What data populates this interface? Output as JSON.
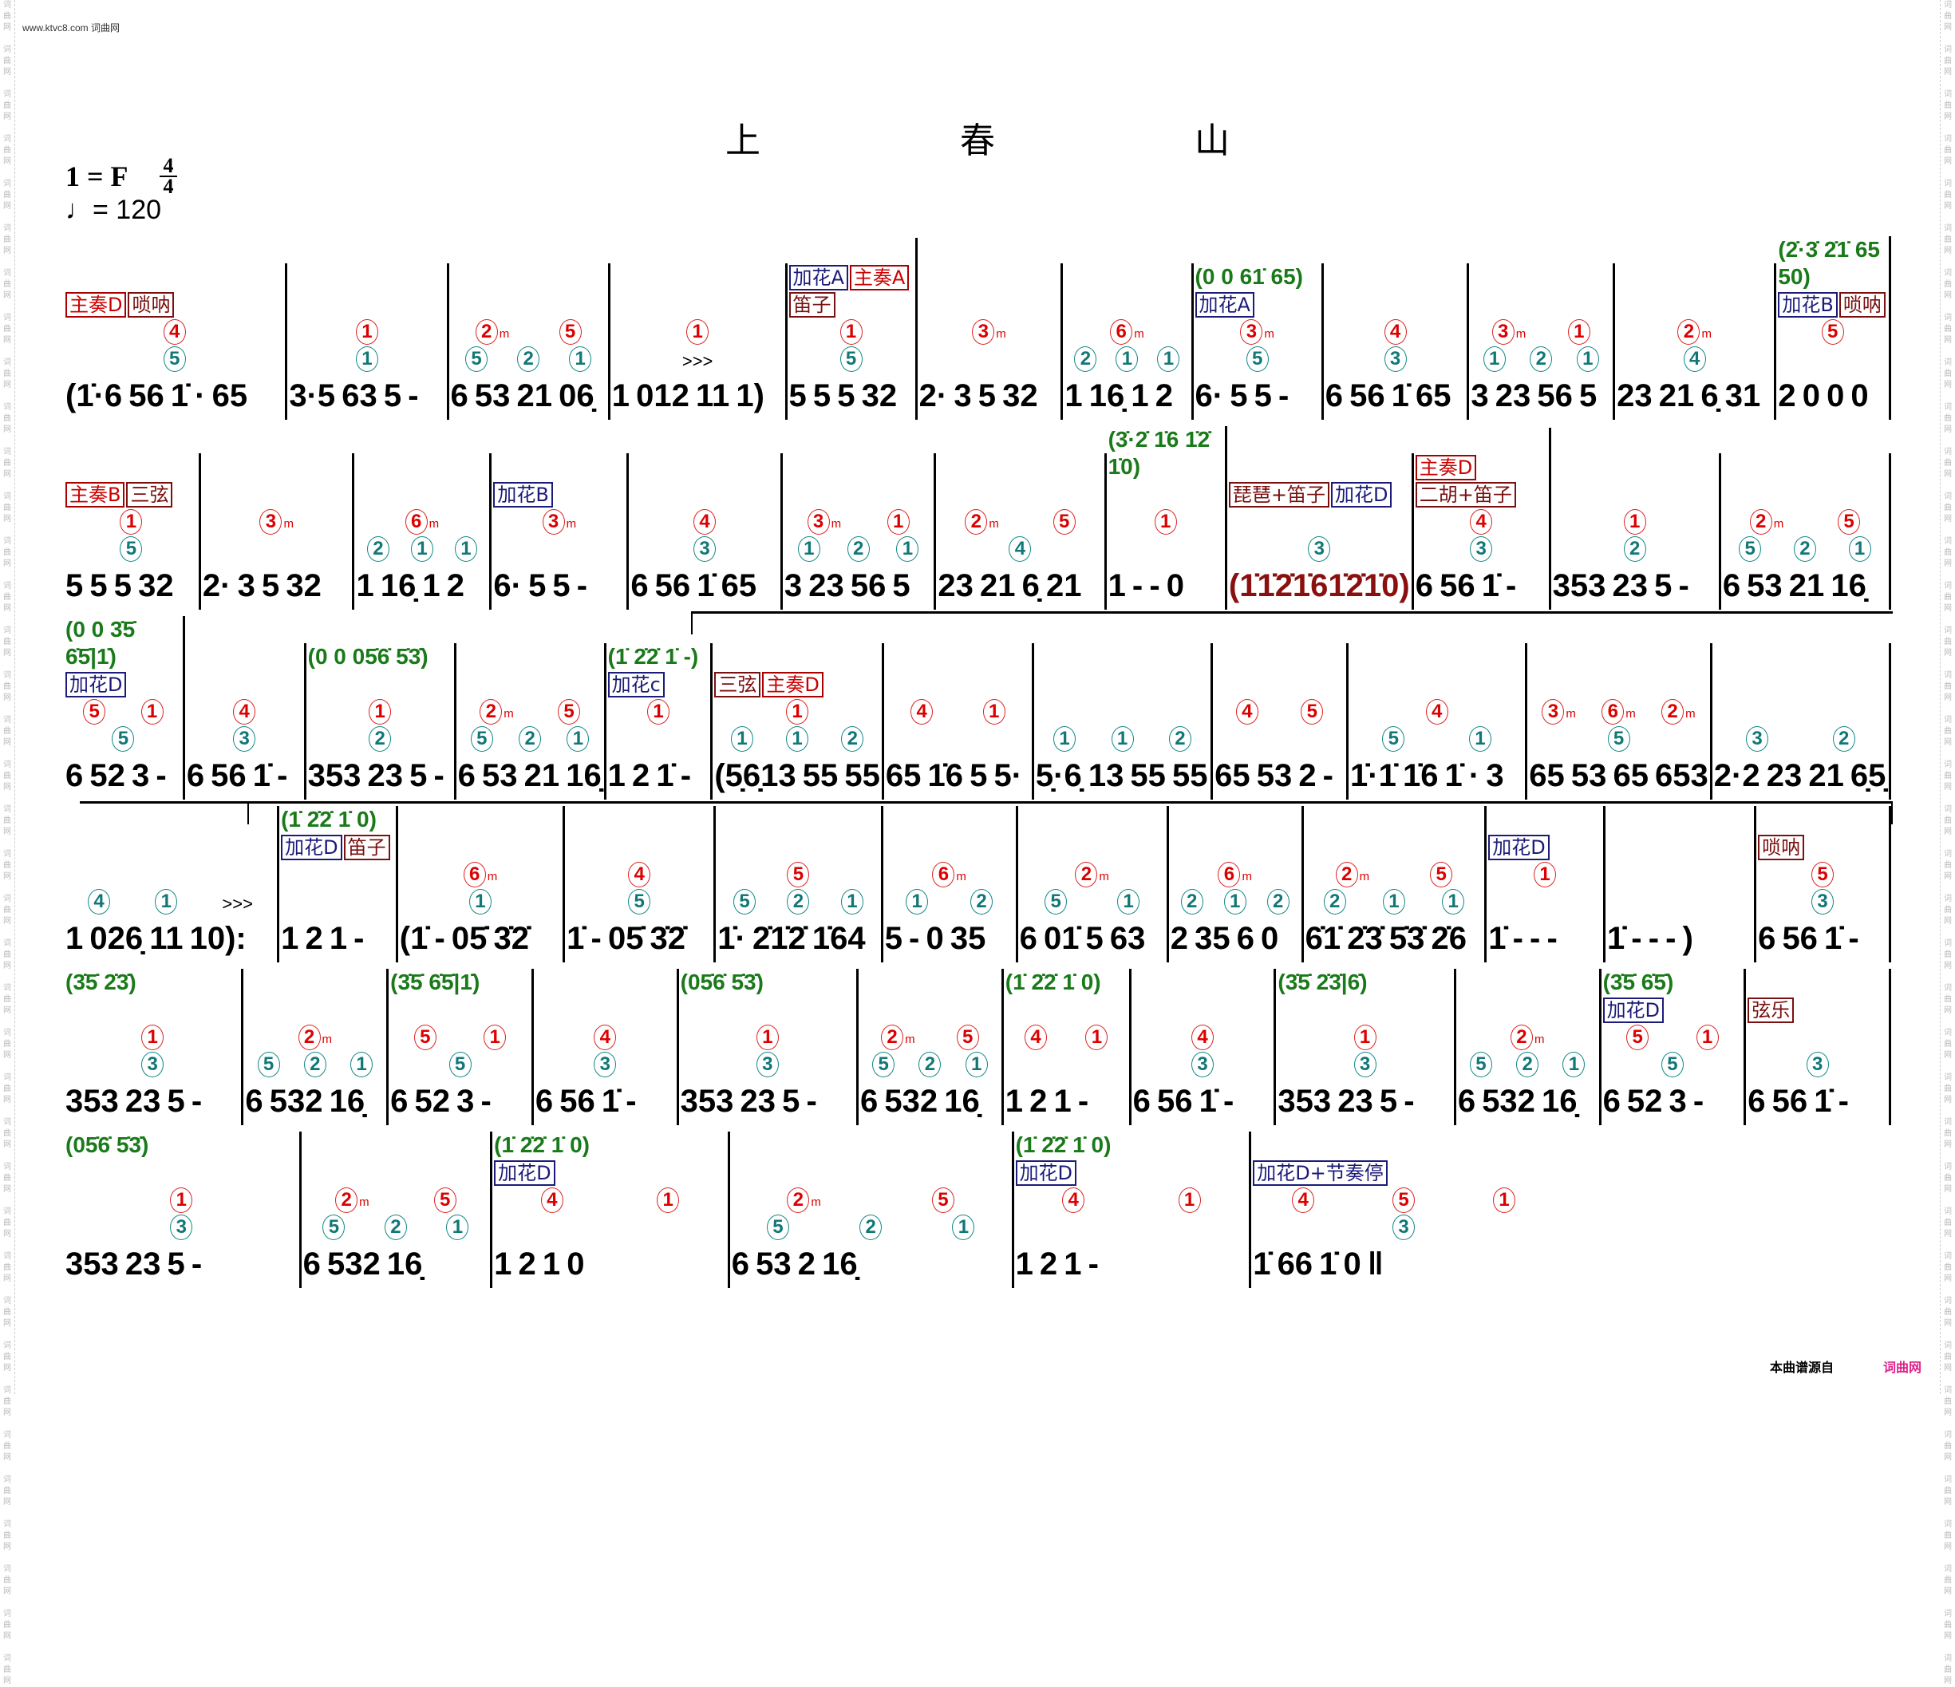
{
  "site": "www.ktvc8.com 词曲网",
  "margin_watermark": "词曲网",
  "title": [
    "上",
    "春",
    "山"
  ],
  "key": "1 = F",
  "time_signature": {
    "top": "4",
    "bottom": "4"
  },
  "tempo": "♩= 120",
  "footer": {
    "source_label": "本曲谱源自",
    "site_name": "词曲网"
  },
  "colors": {
    "string_finger": "#d00000",
    "left_finger": "#117777",
    "ornament": "#1a7a1a",
    "section_box": "#c00000",
    "flower_box": "#1b1b7a"
  },
  "lines": [
    {
      "measures": [
        {
          "notes": "(1̇·6 56 1̇ · 65",
          "red": [
            "4"
          ],
          "teal": [
            "5"
          ],
          "boxes": [
            [
              "主奏D",
              "red"
            ],
            [
              "唢呐",
              "brown"
            ]
          ]
        },
        {
          "notes": "3·5 63 5 -",
          "red": [
            "1"
          ],
          "teal": [
            "1"
          ]
        },
        {
          "notes": "6 53 21 06̣",
          "red": [
            "2m",
            "5"
          ],
          "teal": [
            "5",
            "2",
            "1"
          ]
        },
        {
          "notes": "1 012 11 1)",
          "red": [
            "1"
          ],
          "accent": ">>>"
        },
        {
          "notes": "5 5 5 32",
          "red": [
            "1"
          ],
          "teal": [
            "5"
          ],
          "boxes": [
            [
              "加花A",
              "blue"
            ],
            [
              "主奏A",
              "red"
            ],
            [
              "笛子",
              "brown"
            ]
          ]
        },
        {
          "notes": "2· 3 5 32",
          "red": [
            "3m"
          ]
        },
        {
          "notes": "1 16̣ 1 2",
          "red": [
            "6m"
          ],
          "teal": [
            "2",
            "1",
            "1"
          ]
        },
        {
          "notes": "6· 5 5 -",
          "red": [
            "3m"
          ],
          "teal": [
            "5"
          ],
          "green": "(0 0 61̇ 65)",
          "boxes": [
            [
              "加花A",
              "blue"
            ]
          ]
        },
        {
          "notes": "6 56 1̇ 65",
          "red": [
            "4"
          ],
          "teal": [
            "3"
          ]
        },
        {
          "notes": "3 23 56 5",
          "red": [
            "3m",
            "1"
          ],
          "teal": [
            "1",
            "2",
            "1"
          ]
        },
        {
          "notes": "23 21 6̣ 31",
          "red": [
            "2m"
          ],
          "teal": [
            "4"
          ]
        },
        {
          "notes": "2 0 0 0",
          "red": [
            "5"
          ],
          "green": "(2̇·3̇ 2̇1̇ 65 50)",
          "boxes": [
            [
              "加花B",
              "blue"
            ],
            [
              "唢呐",
              "brown"
            ]
          ]
        }
      ]
    },
    {
      "measures": [
        {
          "notes": "5 5 5 32",
          "red": [
            "1"
          ],
          "teal": [
            "5"
          ],
          "boxes": [
            [
              "主奏B",
              "red"
            ],
            [
              "三弦",
              "brown"
            ]
          ]
        },
        {
          "notes": "2· 3 5 32",
          "red": [
            "3m"
          ]
        },
        {
          "notes": "1 16̣ 1 2",
          "red": [
            "6m"
          ],
          "teal": [
            "2",
            "1",
            "1"
          ]
        },
        {
          "notes": "6· 5 5 -",
          "red": [
            "3m"
          ],
          "boxes": [
            [
              "加花B",
              "blue"
            ]
          ]
        },
        {
          "notes": "6 56 1̇ 65",
          "red": [
            "4"
          ],
          "teal": [
            "3"
          ]
        },
        {
          "notes": "3 23 56 5",
          "red": [
            "3m",
            "1"
          ],
          "teal": [
            "1",
            "2",
            "1"
          ]
        },
        {
          "notes": "23 21 6̣ 21",
          "red": [
            "2m",
            "5"
          ],
          "teal": [
            "4"
          ]
        },
        {
          "notes": "1 - - 0",
          "red": [
            "1"
          ],
          "green": "(3̇·2̇ 1̇6 1̇2̇ 1̇0)"
        },
        {
          "notes": "(1̇1̇2̇1̇61̇2̇1̇0)",
          "dark": true,
          "teal": [
            "3"
          ],
          "boxes": [
            [
              "琵琶+笛子",
              "brown"
            ],
            [
              "加花D",
              "blue"
            ]
          ]
        },
        {
          "notes": "6 56 1̇ -",
          "red": [
            "4"
          ],
          "teal": [
            "3"
          ],
          "boxes": [
            [
              "主奏D",
              "red"
            ],
            [
              "二胡+笛子",
              "brown"
            ]
          ]
        },
        {
          "notes": "353 23 5 -",
          "red": [
            "1"
          ],
          "teal": [
            "2"
          ]
        },
        {
          "notes": "6 53 21 16̣",
          "red": [
            "2m",
            "5"
          ],
          "teal": [
            "5",
            "2",
            "1"
          ]
        }
      ]
    },
    {
      "measures": [
        {
          "notes": "6 52 3 -",
          "red": [
            "5",
            "1"
          ],
          "teal": [
            "5"
          ],
          "green": "(0 0 3̇5̇ 6̇5̇|1̇)",
          "boxes": [
            [
              "加花D",
              "blue"
            ]
          ]
        },
        {
          "notes": "6 56 1̇ -",
          "red": [
            "4"
          ],
          "teal": [
            "3"
          ]
        },
        {
          "notes": "353 23 5 -",
          "red": [
            "1"
          ],
          "teal": [
            "2"
          ],
          "green": "(0 0 05̇6̇ 5̇3̇)"
        },
        {
          "notes": "6 53 21 16̣",
          "red": [
            "2m",
            "5"
          ],
          "teal": [
            "5",
            "2",
            "1"
          ]
        },
        {
          "notes": "1 2 1̇ -",
          "red": [
            "1"
          ],
          "green": "(1̇ 2̇2̇ 1̇ -)",
          "boxes": [
            [
              "加花c",
              "blue"
            ]
          ]
        },
        {
          "notes": "(5̣6̣13 55 55",
          "red": [
            "1"
          ],
          "teal": [
            "1",
            "1",
            "2"
          ],
          "boxes": [
            [
              "三弦",
              "brown"
            ],
            [
              "主奏D",
              "red"
            ]
          ]
        },
        {
          "notes": "65 1̇6 5 5·",
          "red": [
            "4",
            "1"
          ]
        },
        {
          "notes": "5̣·6̣ 13 55 55",
          "teal": [
            "1",
            "1",
            "2"
          ]
        },
        {
          "notes": "65 53 2 -",
          "red": [
            "4",
            "5"
          ]
        },
        {
          "notes": "1̇·1̇ 1̇6 1̇ · 3",
          "red": [
            "4"
          ],
          "teal": [
            "5",
            "1"
          ]
        },
        {
          "notes": "65 53 65 653",
          "red": [
            "3m",
            "6m",
            "2m"
          ],
          "teal": [
            "5"
          ]
        },
        {
          "notes": "2·2 23 21 6̣5̣",
          "teal": [
            "3",
            "2"
          ]
        }
      ]
    },
    {
      "measures": [
        {
          "notes": "1 026̣ 11 10):",
          "teal": [
            "4",
            "1"
          ],
          "accent": ">>>"
        },
        {
          "notes": "1 2 1 -",
          "green": "(1̇ 2̇2̇ 1̇ 0)",
          "boxes": [
            [
              "加花D",
              "blue"
            ],
            [
              "笛子",
              "brown"
            ]
          ]
        },
        {
          "notes": "(1̇ - 05̇ 3̇2̇",
          "red": [
            "6m"
          ],
          "teal": [
            "1"
          ]
        },
        {
          "notes": "1̇ - 05̇ 3̇2̇",
          "red": [
            "4"
          ],
          "teal": [
            "5"
          ]
        },
        {
          "notes": "1̇· 2̇1̇2̇ 1̇64",
          "red": [
            "5"
          ],
          "teal": [
            "5",
            "2",
            "1"
          ]
        },
        {
          "notes": "5 - 0 35",
          "red": [
            "6m"
          ],
          "teal": [
            "1",
            "2"
          ]
        },
        {
          "notes": "6 01̇ 5 63",
          "red": [
            "2m"
          ],
          "teal": [
            "5",
            "1"
          ]
        },
        {
          "notes": "2 35 6 0",
          "red": [
            "6m"
          ],
          "teal": [
            "2",
            "1",
            "2"
          ]
        },
        {
          "notes": "6̇1̇ 2̇3̇ 5̇3̇ 2̇6",
          "red": [
            "2m",
            "5"
          ],
          "teal": [
            "2",
            "1",
            "1"
          ]
        },
        {
          "notes": "1̇ - - -",
          "red": [
            "1"
          ],
          "boxes": [
            [
              "加花D",
              "blue"
            ]
          ]
        },
        {
          "notes": "1̇ - - - )"
        },
        {
          "notes": "6 56 1̇ -",
          "red": [
            "5"
          ],
          "teal": [
            "3"
          ],
          "boxes": [
            [
              "唢呐",
              "brown"
            ]
          ]
        }
      ]
    },
    {
      "measures": [
        {
          "notes": "353 23 5 -",
          "red": [
            "1"
          ],
          "teal": [
            "3"
          ],
          "green": "(3̇5̇ 2̇3̇)"
        },
        {
          "notes": "6 532 16̣",
          "red": [
            "2m"
          ],
          "teal": [
            "5",
            "2",
            "1"
          ]
        },
        {
          "notes": "6 52 3 -",
          "red": [
            "5",
            "1"
          ],
          "teal": [
            "5"
          ],
          "green": "(3̇5̇ 6̇5̇|1̇)"
        },
        {
          "notes": "6 56 1̇ -",
          "red": [
            "4"
          ],
          "teal": [
            "3"
          ]
        },
        {
          "notes": "353 23 5 -",
          "red": [
            "1"
          ],
          "teal": [
            "3"
          ],
          "green": "(05̇6̇ 5̇3̇)"
        },
        {
          "notes": "6 532 16̣",
          "red": [
            "2m",
            "5"
          ],
          "teal": [
            "5",
            "2",
            "1"
          ]
        },
        {
          "notes": "1 2 1 -",
          "red": [
            "4",
            "1"
          ],
          "green": "(1̇ 2̇2̇ 1̇ 0)"
        },
        {
          "notes": "6 56 1̇ -",
          "red": [
            "4"
          ],
          "teal": [
            "3"
          ]
        },
        {
          "notes": "353 23 5 -",
          "red": [
            "1"
          ],
          "teal": [
            "3"
          ],
          "green": "(3̇5̇ 2̇3̇|6̇)"
        },
        {
          "notes": "6 532 16̣",
          "red": [
            "2m"
          ],
          "teal": [
            "5",
            "2",
            "1"
          ]
        },
        {
          "notes": "6 52 3 -",
          "red": [
            "5",
            "1"
          ],
          "teal": [
            "5"
          ],
          "green": "(3̇5̇ 6̇5̇)",
          "boxes": [
            [
              "加花D",
              "blue"
            ]
          ]
        },
        {
          "notes": "6 56 1̇ -",
          "teal": [
            "3"
          ],
          "boxes": [
            [
              "弦乐",
              "brown"
            ]
          ]
        }
      ]
    },
    {
      "measures": [
        {
          "notes": "353 23 5 -",
          "red": [
            "1"
          ],
          "teal": [
            "3"
          ],
          "green": "(05̇6̇ 5̇3̇)"
        },
        {
          "notes": "6 532 16̣",
          "red": [
            "2m",
            "5"
          ],
          "teal": [
            "5",
            "2",
            "1"
          ]
        },
        {
          "notes": "1  2  1  0",
          "red": [
            "4",
            "1"
          ],
          "green": "(1̇ 2̇2̇ 1̇ 0)",
          "boxes": [
            [
              "加花D",
              "blue"
            ]
          ]
        },
        {
          "notes": "6  53  2  16̣",
          "red": [
            "2m",
            "5"
          ],
          "teal": [
            "5",
            "2",
            "1"
          ]
        },
        {
          "notes": "1  2  1  -",
          "red": [
            "4",
            "1"
          ],
          "green": "(1̇ 2̇2̇ 1̇ 0)",
          "boxes": [
            [
              "加花D",
              "blue"
            ]
          ]
        },
        {
          "notes": "1̇  66  1̇  0 ‖",
          "red": [
            "4",
            "5",
            "1"
          ],
          "teal": [
            "3"
          ],
          "boxes": [
            [
              "加花D+节奏停",
              "blue"
            ]
          ]
        }
      ]
    }
  ]
}
